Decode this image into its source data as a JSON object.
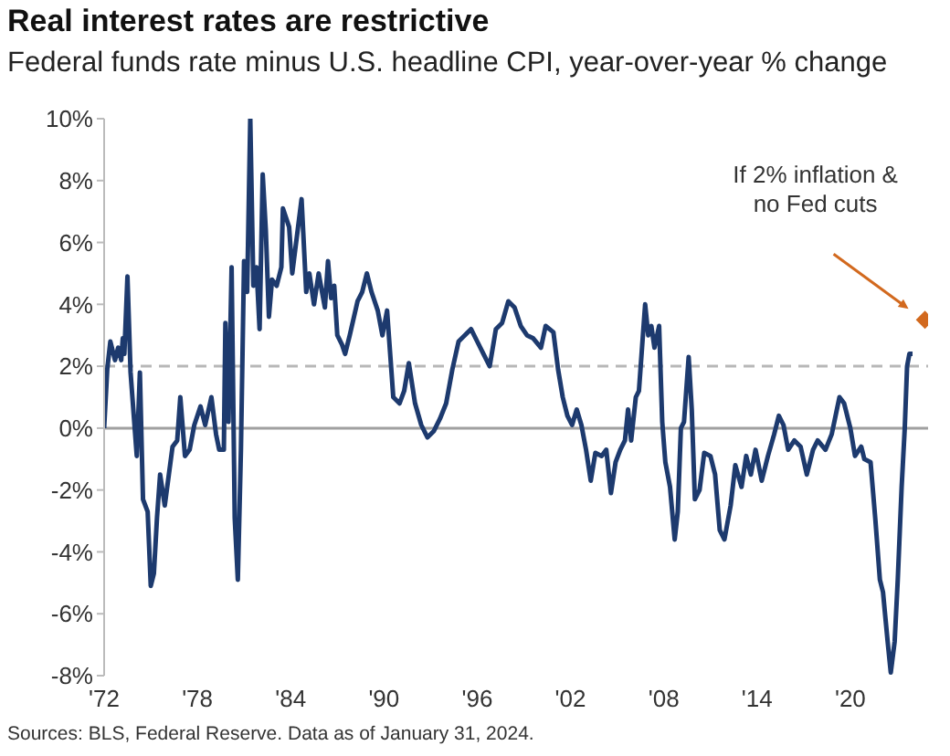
{
  "chart_data": {
    "type": "line",
    "title": "Real interest rates are restrictive",
    "subtitle": "Federal funds rate minus U.S. headline CPI, year-over-year % change",
    "xlim": [
      1972,
      2025
    ],
    "xticks": [
      {
        "value": 1972,
        "label": "'72"
      },
      {
        "value": 1978,
        "label": "'78"
      },
      {
        "value": 1984,
        "label": "'84"
      },
      {
        "value": 1990,
        "label": "'90"
      },
      {
        "value": 1996,
        "label": "'96"
      },
      {
        "value": 2002,
        "label": "'02"
      },
      {
        "value": 2008,
        "label": "'08"
      },
      {
        "value": 2014,
        "label": "'14"
      },
      {
        "value": 2020,
        "label": "'20"
      }
    ],
    "ylim": [
      -8,
      10
    ],
    "yticks": [
      {
        "value": -8,
        "label": "-8%"
      },
      {
        "value": -6,
        "label": "-6%"
      },
      {
        "value": -4,
        "label": "-4%"
      },
      {
        "value": -2,
        "label": "-2%"
      },
      {
        "value": 0,
        "label": "0%"
      },
      {
        "value": 2,
        "label": "2%"
      },
      {
        "value": 4,
        "label": "4%"
      },
      {
        "value": 6,
        "label": "6%"
      },
      {
        "value": 8,
        "label": "8%"
      },
      {
        "value": 10,
        "label": "10%"
      }
    ],
    "ref_lines": [
      {
        "axis": "y",
        "value": 2,
        "color": "#b8b8b8",
        "line_style": "dashed"
      },
      {
        "axis": "y",
        "value": 0,
        "color": "#a0a0a0",
        "line_style": "solid"
      }
    ],
    "series": [
      {
        "color": "#1d3a6e",
        "x": [
          1972,
          1972.2,
          1972.4,
          1972.7,
          1972.9,
          1973.1,
          1973.2,
          1973.3,
          1973.5,
          1973.7,
          1974.1,
          1974.3,
          1974.5,
          1974.8,
          1975,
          1975.2,
          1975.4,
          1975.6,
          1975.9,
          1976.4,
          1976.7,
          1976.9,
          1977.2,
          1977.5,
          1977.8,
          1978.2,
          1978.5,
          1978.9,
          1979.2,
          1979.4,
          1979.7,
          1979.8,
          1980,
          1980.2,
          1980.4,
          1980.6,
          1980.8,
          1981,
          1981.2,
          1981.4,
          1981.6,
          1981.8,
          1982,
          1982.2,
          1982.4,
          1982.6,
          1982.8,
          1983.1,
          1983.4,
          1983.5,
          1983.9,
          1984.1,
          1984.4,
          1984.7,
          1985,
          1985.2,
          1985.5,
          1985.8,
          1986.2,
          1986.4,
          1986.6,
          1986.8,
          1987,
          1987.3,
          1987.5,
          1987.8,
          1988.3,
          1988.6,
          1988.9,
          1989.2,
          1989.6,
          1989.9,
          1990.2,
          1990.6,
          1991,
          1991.3,
          1991.6,
          1992,
          1992.4,
          1992.8,
          1993.2,
          1993.6,
          1994,
          1994.4,
          1994.8,
          1995.2,
          1995.6,
          1996,
          1996.4,
          1996.8,
          1997.2,
          1997.6,
          1998,
          1998.4,
          1998.8,
          1999.2,
          1999.6,
          2000.1,
          2000.4,
          2000.9,
          2001.2,
          2001.5,
          2001.8,
          2002.1,
          2002.4,
          2002.7,
          2003,
          2003.3,
          2003.6,
          2004,
          2004.3,
          2004.6,
          2004.9,
          2005.2,
          2005.5,
          2005.7,
          2005.9,
          2006.2,
          2006.4,
          2006.6,
          2006.8,
          2007,
          2007.2,
          2007.4,
          2007.7,
          2007.9,
          2008.1,
          2008.4,
          2008.7,
          2008.9,
          2009.1,
          2009.3,
          2009.6,
          2009.8,
          2010,
          2010.3,
          2010.6,
          2011,
          2011.3,
          2011.6,
          2011.9,
          2012.3,
          2012.6,
          2013,
          2013.3,
          2013.6,
          2013.9,
          2014.3,
          2014.7,
          2015.1,
          2015.4,
          2015.7,
          2016,
          2016.4,
          2016.8,
          2017.2,
          2017.6,
          2017.9,
          2018.4,
          2018.8,
          2019.3,
          2019.6,
          2020,
          2020.3,
          2020.7,
          2020.9,
          2021.3,
          2021.6,
          2021.9,
          2022.1,
          2022.4,
          2022.6,
          2022.85,
          2023.05,
          2023.3,
          2023.5,
          2023.65,
          2023.8,
          2024
        ],
        "values": [
          0,
          1.9,
          2.8,
          2.2,
          2.6,
          2.2,
          2.9,
          2.4,
          4.9,
          1.8,
          -0.9,
          1.8,
          -2.3,
          -2.7,
          -5.1,
          -4.7,
          -2.9,
          -1.5,
          -2.5,
          -0.6,
          -0.4,
          1,
          -0.9,
          -0.7,
          0.1,
          0.7,
          0.1,
          1,
          -0.2,
          -0.7,
          -0.7,
          3.4,
          0.2,
          5.2,
          -2.9,
          -4.9,
          -0.7,
          5.4,
          4.4,
          10,
          4.6,
          5.2,
          3.2,
          8.2,
          6.4,
          3.6,
          4.8,
          4.6,
          5.2,
          7.1,
          6.5,
          5,
          6.2,
          7.4,
          4.4,
          5,
          4,
          5,
          3.9,
          5.4,
          4.2,
          4.6,
          3,
          2.7,
          2.4,
          3,
          4.1,
          4.4,
          5,
          4.4,
          3.8,
          3,
          3.8,
          1,
          0.8,
          1.2,
          2.1,
          0.8,
          0.1,
          -0.3,
          -0.1,
          0.3,
          0.8,
          1.9,
          2.8,
          3,
          3.2,
          2.8,
          2.4,
          2,
          3.2,
          3.4,
          4.1,
          3.9,
          3.3,
          3,
          2.9,
          2.6,
          3.3,
          3.1,
          1.9,
          1,
          0.4,
          0.1,
          0.6,
          0.1,
          -0.7,
          -1.7,
          -0.8,
          -0.9,
          -0.7,
          -2.1,
          -1.1,
          -0.7,
          -0.4,
          0.6,
          -0.4,
          1,
          1.2,
          2.6,
          4,
          3,
          3.3,
          2.6,
          3.3,
          0.2,
          -1.1,
          -1.9,
          -3.6,
          -2.7,
          0,
          0.2,
          2.3,
          0.6,
          -2.3,
          -2,
          -0.8,
          -0.9,
          -1.5,
          -3.3,
          -3.6,
          -2.5,
          -1.2,
          -1.9,
          -0.9,
          -1.5,
          -0.7,
          -1.7,
          -0.9,
          -0.2,
          0.4,
          0.1,
          -0.7,
          -0.4,
          -0.6,
          -1.5,
          -0.7,
          -0.4,
          -0.7,
          -0.2,
          1,
          0.8,
          0,
          -0.9,
          -0.6,
          -1,
          -1.1,
          -2.9,
          -4.9,
          -5.3,
          -6.9,
          -7.9,
          -6.9,
          -4.9,
          -1.9,
          0,
          2,
          2.4,
          2.4
        ]
      },
      {
        "type": "scatter",
        "color": "#d2691e",
        "marker": "diamond",
        "x": [
          2024.8
        ],
        "values": [
          3.5
        ]
      }
    ],
    "annotations": [
      "If 2% inflation &\nno Fed cuts",
      "Sources: BLS, Federal Reserve. Data as of January 31, 2024."
    ]
  }
}
